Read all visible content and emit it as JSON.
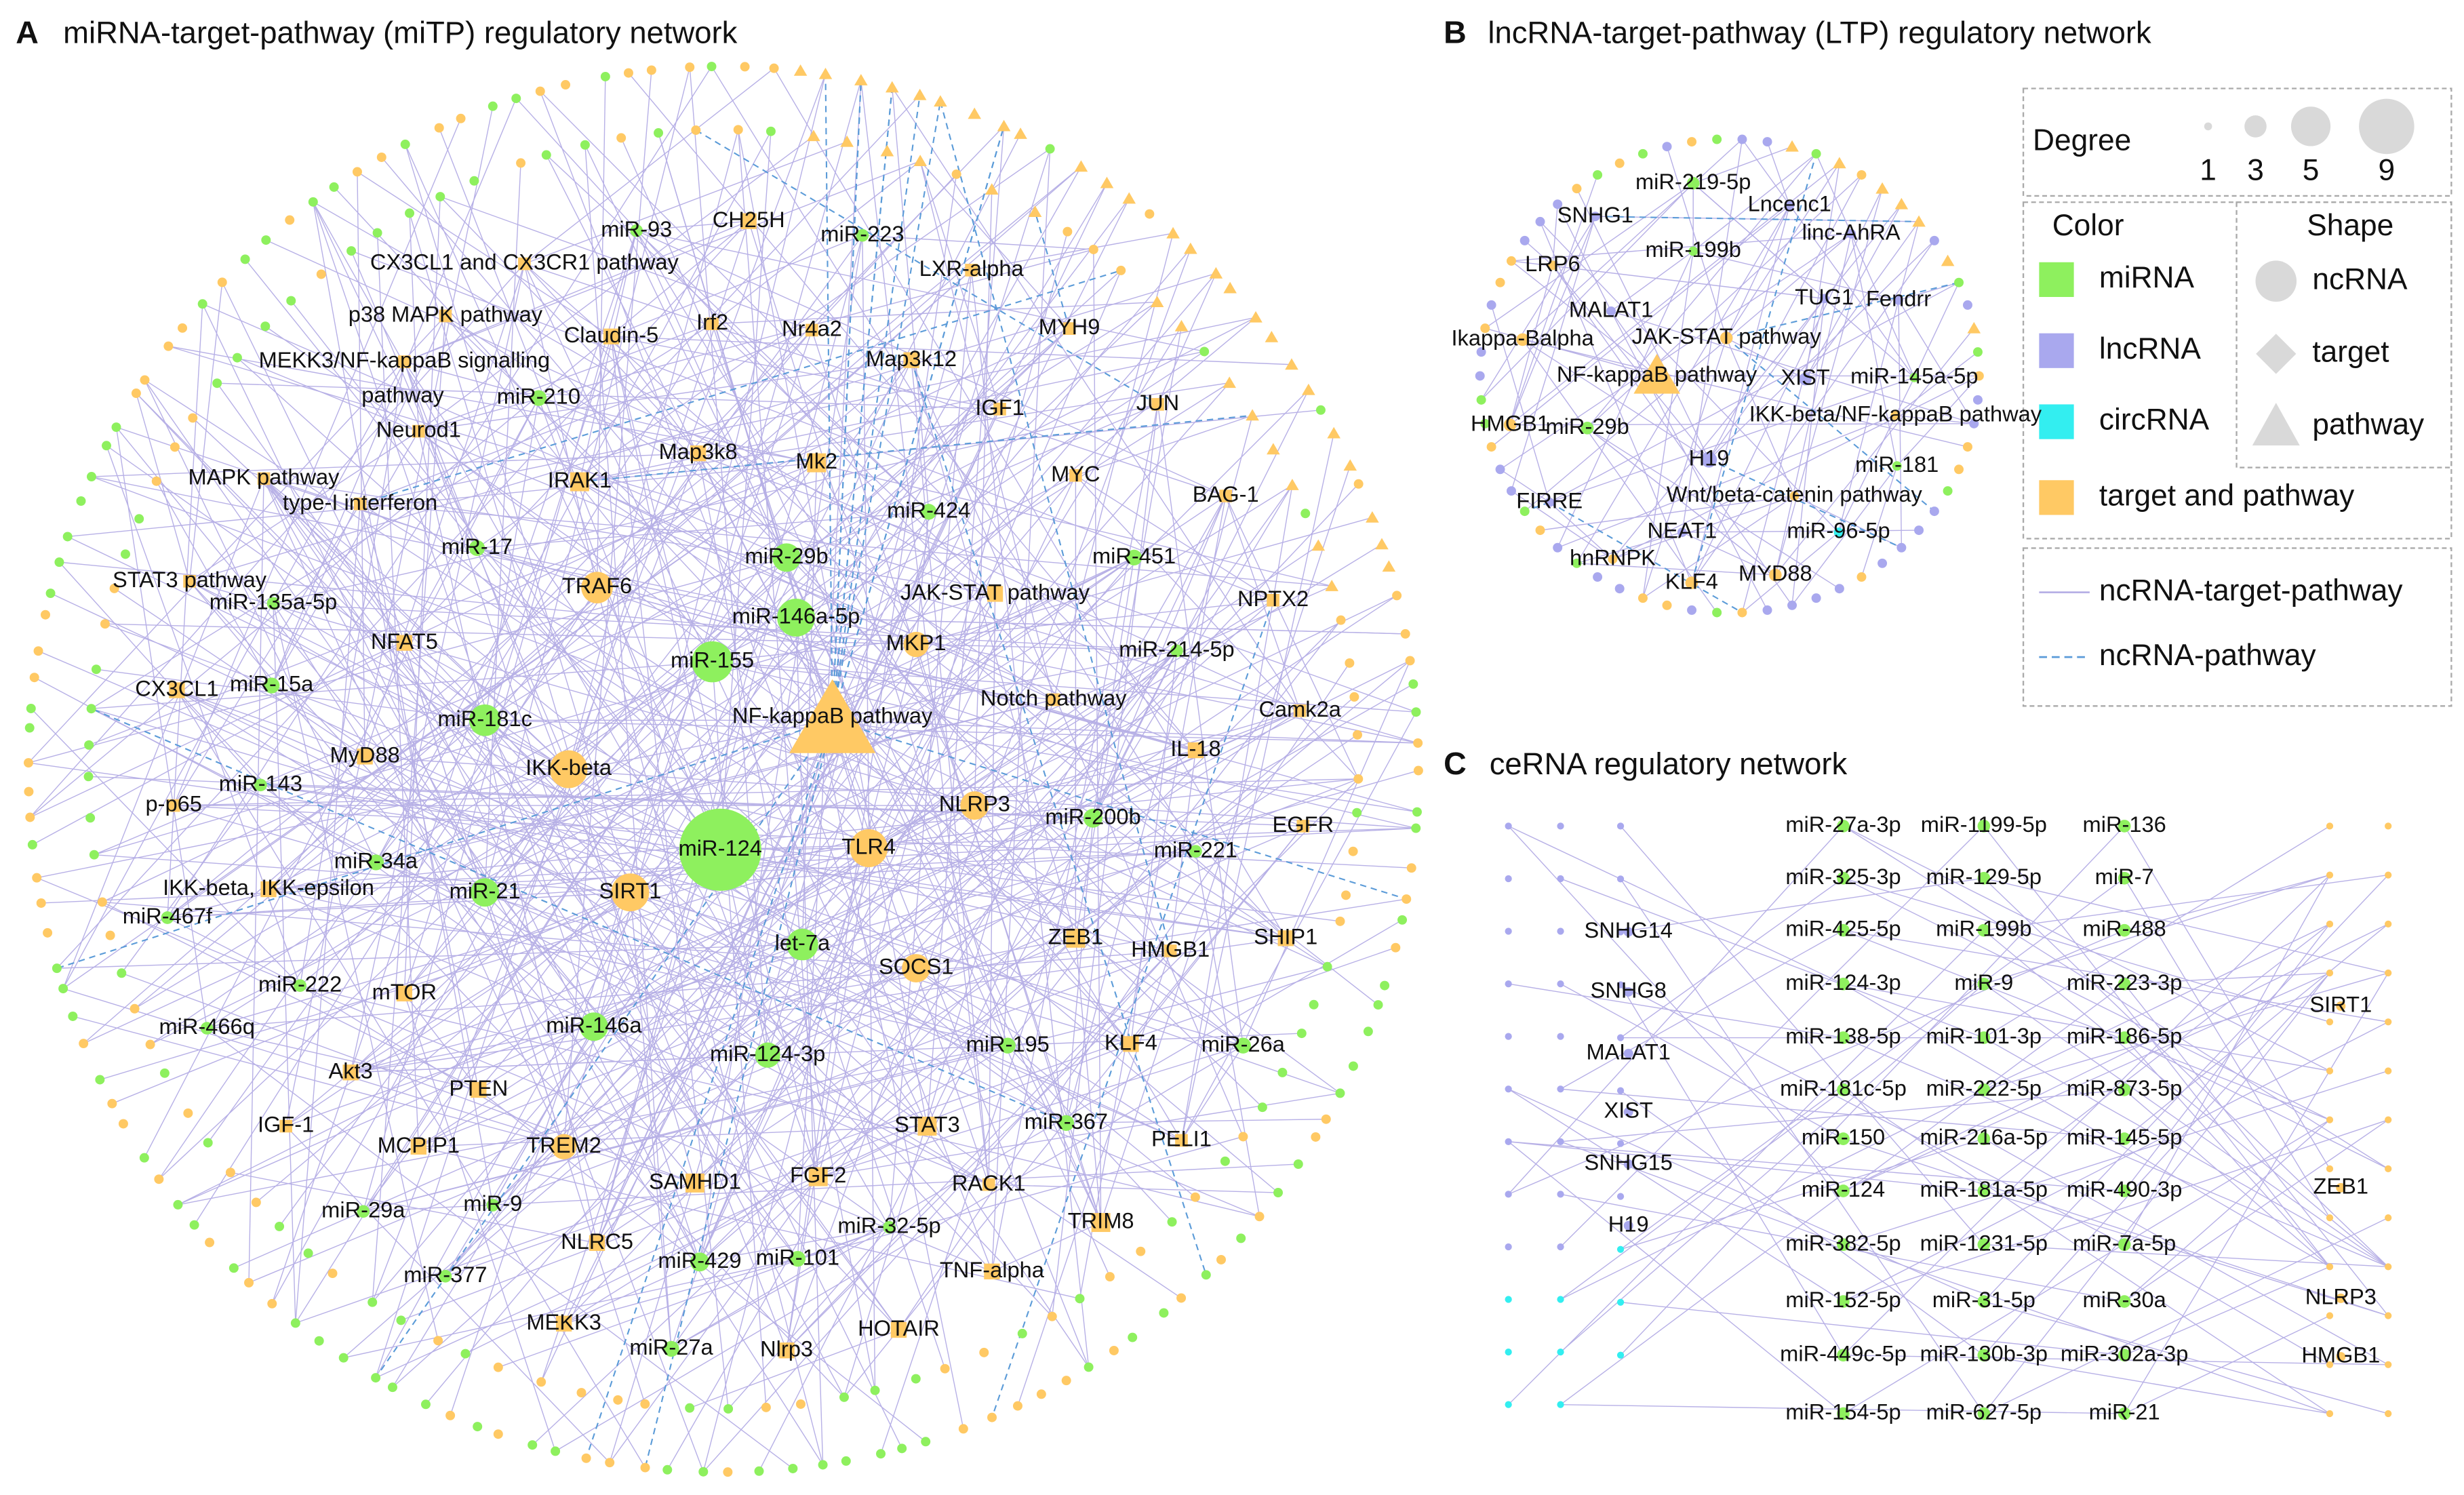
{
  "panel_a": {
    "letter": "A",
    "title": "miRNA-target-pathway (miTP) regulatory network",
    "nodes": [
      "miR-93",
      "CH25H",
      "miR-223",
      "CX3CL1 and CX3CR1 pathway",
      "LXR-alpha",
      "p38 MAPK pathway",
      "Irf2",
      "Nr4a2",
      "Claudin-5",
      "MYH9",
      "MEKK3/NF-kappaB signalling",
      "pathway",
      "Map3k12",
      "miR-210",
      "IGF1",
      "JUN",
      "Neurod1",
      "Map3k8",
      "Mk2",
      "MAPK pathway",
      "IRAK1",
      "MYC",
      "BAG-1",
      "type-I interferon",
      "miR-424",
      "miR-17",
      "miR-29b",
      "miR-451",
      "TRAF6",
      "JAK-STAT pathway",
      "STAT3 pathway",
      "miR-146a-5p",
      "NPTX2",
      "miR-135a-5p",
      "NFAT5",
      "MKP1",
      "miR-155",
      "miR-214-5p",
      "CX3CL1",
      "miR-15a",
      "Notch pathway",
      "NF-kappaB pathway",
      "miR-181c",
      "Camk2a",
      "MyD88",
      "IL-18",
      "IKK-beta",
      "miR-143",
      "p-p65",
      "NLRP3",
      "miR-200b",
      "EGFR",
      "miR-124",
      "TLR4",
      "miR-34a",
      "miR-221",
      "IKK-beta, IKK-epsilon",
      "miR-21",
      "SIRT1",
      "miR-467f",
      "let-7a",
      "ZEB1",
      "SHIP1",
      "HMGB1",
      "SOCS1",
      "miR-222",
      "mTOR",
      "miR-146a",
      "miR-466q",
      "miR-195",
      "KLF4",
      "miR-26a",
      "miR-124-3p",
      "Akt3",
      "PTEN",
      "IGF-1",
      "MCPIP1",
      "TREM2",
      "STAT3",
      "miR-367",
      "PELI1",
      "SAMHD1",
      "FGF2",
      "RACK1",
      "miR-29a",
      "miR-9",
      "TRIM8",
      "miR-32-5p",
      "NLRC5",
      "miR-377",
      "miR-429",
      "miR-101",
      "TNF-alpha",
      "MEKK3",
      "HOTAIR",
      "miR-27a",
      "Nlrp3"
    ]
  },
  "panel_b": {
    "letter": "B",
    "title": "lncRNA-target-pathway (LTP) regulatory network",
    "nodes": [
      "miR-219-5p",
      "SNHG1",
      "Lncenc1",
      "linc-AhRA",
      "miR-199b",
      "LRP6",
      "MALAT1",
      "TUG1",
      "Fendrr",
      "Ikappa-Balpha",
      "JAK-STAT pathway",
      "NF-kappaB pathway",
      "XIST",
      "miR-145a-5p",
      "HMGB1",
      "miR-29b",
      "IKK-beta/NF-kappaB pathway",
      "H19",
      "miR-181",
      "FIRRE",
      "Wnt/beta-catenin pathway",
      "NEAT1",
      "miR-96-5p",
      "hnRNPK",
      "MYD88",
      "KLF4"
    ]
  },
  "legend": {
    "degree_title": "Degree",
    "degree_values": [
      1,
      3,
      5,
      9
    ],
    "color_title": "Color",
    "colors": [
      "miRNA",
      "lncRNA",
      "circRNA",
      "target and pathway"
    ],
    "shape_title": "Shape",
    "shapes": [
      "ncRNA",
      "target",
      "pathway"
    ],
    "edges": [
      "ncRNA-target-pathway",
      "ncRNA-pathway"
    ]
  },
  "panel_c": {
    "letter": "C",
    "title": "ceRNA regulatory network",
    "lncrnas": [
      "SNHG14",
      "SNHG8",
      "MALAT1",
      "XIST",
      "SNHG15",
      "H19"
    ],
    "mirnas": [
      [
        "miR-27a-3p",
        "miR-325-3p",
        "miR-425-5p",
        "miR-124-3p",
        "miR-138-5p",
        "miR-181c-5p",
        "miR-150",
        "miR-124",
        "miR-382-5p",
        "miR-152-5p",
        "miR-449c-5p",
        "miR-154-5p"
      ],
      [
        "miR-1199-5p",
        "miR-129-5p",
        "miR-199b",
        "miR-9",
        "miR-101-3p",
        "miR-222-5p",
        "miR-216a-5p",
        "miR-181a-5p",
        "miR-1231-5p",
        "miR-31-5p",
        "miR-130b-3p",
        "miR-627-5p"
      ],
      [
        "miR-136",
        "miR-7",
        "miR-488",
        "miR-223-3p",
        "miR-186-5p",
        "miR-873-5p",
        "miR-145-5p",
        "miR-490-3p",
        "miR-7a-5p",
        "miR-30a",
        "miR-302a-3p",
        "miR-21"
      ]
    ],
    "targets": [
      "SIRT1",
      "ZEB1",
      "NLRP3",
      "HMGB1"
    ]
  }
}
